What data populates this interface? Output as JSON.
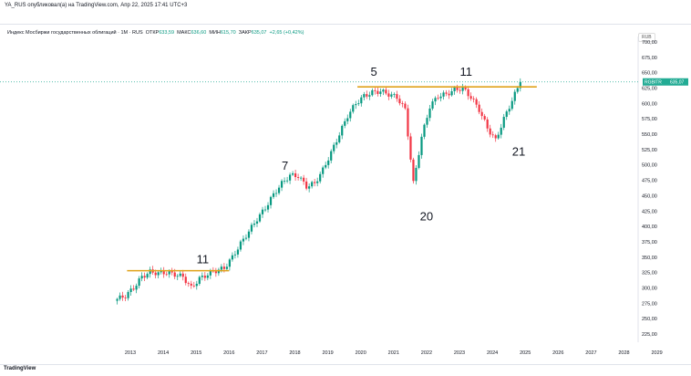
{
  "header": {
    "published": "YA_RUS опубликовал(а) на TradingView.com, Апр 22, 2025 17:41 UTC+3"
  },
  "legend": {
    "title": "Индекс Мосбиржи государственных облигаций · 1M · RUS",
    "open_label": "ОТКР",
    "open": "633,59",
    "high_label": "МАКС",
    "high": "636,60",
    "low_label": "МИН",
    "low": "615,70",
    "close_label": "ЗАКР",
    "close": "635,07",
    "change": "+2,65 (+0,42%)"
  },
  "currency": "RUB",
  "price_tag": {
    "symbol": "RGBITR",
    "value": "635,07"
  },
  "logo": "TradingView",
  "colors": {
    "up": "#089981",
    "down": "#f23645",
    "level": "#e0a21a",
    "tag": "#22ab94"
  },
  "chart_data": {
    "type": "candlestick",
    "title": "Индекс Мосбиржи государственных облигаций",
    "ylim": [
      210,
      710
    ],
    "xlim": [
      2011.9,
      2029.2
    ],
    "y_ticks": [
      "700,00",
      "675,00",
      "650,00",
      "625,00",
      "600,00",
      "575,00",
      "550,00",
      "525,00",
      "500,00",
      "475,00",
      "450,00",
      "425,00",
      "400,00",
      "375,00",
      "350,00",
      "325,00",
      "300,00",
      "275,00",
      "250,00",
      "225,00"
    ],
    "x_ticks": [
      "2013",
      "2014",
      "2015",
      "2016",
      "2017",
      "2018",
      "2019",
      "2020",
      "2021",
      "2022",
      "2023",
      "2024",
      "2025",
      "2026",
      "2027",
      "2028",
      "2029"
    ],
    "quarterly_closes": {
      "start": 2012.6,
      "step": 0.25,
      "values": [
        282,
        287,
        300,
        318,
        326,
        324,
        325,
        322,
        318,
        300,
        315,
        322,
        328,
        332,
        350,
        372,
        392,
        412,
        430,
        452,
        470,
        483,
        482,
        465,
        470,
        492,
        520,
        550,
        580,
        600,
        612,
        618,
        620,
        615,
        610,
        590,
        470,
        545,
        595,
        612,
        615,
        622,
        625,
        610,
        590,
        560,
        540,
        575,
        605,
        635
      ]
    },
    "levels": [
      {
        "value": 328,
        "from": 2012.9,
        "to": 2016.0
      },
      {
        "value": 627,
        "from": 2019.9,
        "to": 2025.35
      }
    ],
    "annotations": [
      {
        "text": "11",
        "x": 2015.2,
        "y": 340
      },
      {
        "text": "7",
        "x": 2017.7,
        "y": 492
      },
      {
        "text": "5",
        "x": 2020.4,
        "y": 645
      },
      {
        "text": "11",
        "x": 2023.2,
        "y": 645
      },
      {
        "text": "20",
        "x": 2022.0,
        "y": 410
      },
      {
        "text": "21",
        "x": 2024.8,
        "y": 515
      }
    ],
    "last_price": 635.07
  }
}
